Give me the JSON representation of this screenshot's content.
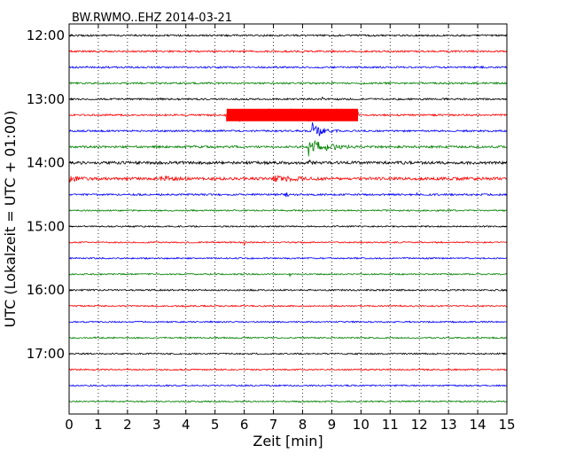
{
  "chart_data": {
    "type": "line",
    "title": "BW.RWMO..EHZ 2014-03-21",
    "xlabel": "Zeit  [min]",
    "ylabel": "UTC (Lokalzeit = UTC + 01:00)",
    "xlim": [
      0,
      15
    ],
    "x_ticks": [
      "0",
      "1",
      "2",
      "3",
      "4",
      "5",
      "6",
      "7",
      "8",
      "9",
      "10",
      "11",
      "12",
      "13",
      "14",
      "15"
    ],
    "y_ticks": [
      "12:00",
      "13:00",
      "14:00",
      "15:00",
      "16:00",
      "17:00"
    ],
    "grid": "vertical dotted",
    "colors": [
      "#000000",
      "#ff0000",
      "#0000ff",
      "#008000"
    ],
    "traces": [
      {
        "start": "12:00",
        "color": "#000000",
        "noise": 1.0,
        "events": []
      },
      {
        "start": "12:15",
        "color": "#ff0000",
        "noise": 1.0,
        "events": []
      },
      {
        "start": "12:30",
        "color": "#0000ff",
        "noise": 1.0,
        "events": [
          {
            "t": 5.75,
            "amp": 4,
            "dur": 0.08
          }
        ]
      },
      {
        "start": "12:45",
        "color": "#008000",
        "noise": 1.0,
        "events": []
      },
      {
        "start": "13:00",
        "color": "#000000",
        "noise": 1.0,
        "events": [
          {
            "t": 8.65,
            "amp": 5,
            "dur": 0.08
          }
        ]
      },
      {
        "start": "13:15",
        "color": "#ff0000",
        "noise": 1.0,
        "events": [
          {
            "t": 5.4,
            "amp": 7,
            "dur": 4.5,
            "type": "block"
          }
        ]
      },
      {
        "start": "13:30",
        "color": "#0000ff",
        "noise": 1.0,
        "events": [
          {
            "t": 3.9,
            "amp": 4,
            "dur": 0.1
          },
          {
            "t": 8.3,
            "amp": 11,
            "dur": 1.0
          }
        ]
      },
      {
        "start": "13:45",
        "color": "#008000",
        "noise": 1.2,
        "events": [
          {
            "t": 4.25,
            "amp": 3,
            "dur": 0.08
          },
          {
            "t": 8.2,
            "amp": 10,
            "dur": 1.6
          }
        ]
      },
      {
        "start": "14:00",
        "color": "#000000",
        "noise": 1.6,
        "events": [
          {
            "t": 8.2,
            "amp": 3,
            "dur": 0.2
          }
        ]
      },
      {
        "start": "14:15",
        "color": "#ff0000",
        "noise": 1.6,
        "events": [
          {
            "t": 0.0,
            "amp": 3,
            "dur": 0.7
          },
          {
            "t": 3.1,
            "amp": 3,
            "dur": 1.0
          },
          {
            "t": 7.0,
            "amp": 3,
            "dur": 1.8
          }
        ]
      },
      {
        "start": "14:30",
        "color": "#0000ff",
        "noise": 1.0,
        "events": [
          {
            "t": 7.4,
            "amp": 3,
            "dur": 0.3
          },
          {
            "t": 11.9,
            "amp": 4,
            "dur": 0.1
          }
        ]
      },
      {
        "start": "14:45",
        "color": "#008000",
        "noise": 0.8,
        "events": []
      },
      {
        "start": "15:00",
        "color": "#000000",
        "noise": 0.8,
        "events": []
      },
      {
        "start": "15:15",
        "color": "#ff0000",
        "noise": 0.8,
        "events": [
          {
            "t": 6.0,
            "amp": 5,
            "dur": 0.08
          }
        ]
      },
      {
        "start": "15:30",
        "color": "#0000ff",
        "noise": 0.8,
        "events": []
      },
      {
        "start": "15:45",
        "color": "#008000",
        "noise": 0.8,
        "events": [
          {
            "t": 7.55,
            "amp": 4,
            "dur": 0.08
          }
        ]
      },
      {
        "start": "16:00",
        "color": "#000000",
        "noise": 0.9,
        "events": []
      },
      {
        "start": "16:15",
        "color": "#ff0000",
        "noise": 0.8,
        "events": []
      },
      {
        "start": "16:30",
        "color": "#0000ff",
        "noise": 0.8,
        "events": []
      },
      {
        "start": "16:45",
        "color": "#008000",
        "noise": 0.8,
        "events": []
      },
      {
        "start": "17:00",
        "color": "#000000",
        "noise": 0.8,
        "events": []
      },
      {
        "start": "17:15",
        "color": "#ff0000",
        "noise": 0.8,
        "events": []
      },
      {
        "start": "17:30",
        "color": "#0000ff",
        "noise": 0.8,
        "events": []
      },
      {
        "start": "17:45",
        "color": "#008000",
        "noise": 0.8,
        "events": []
      }
    ]
  }
}
